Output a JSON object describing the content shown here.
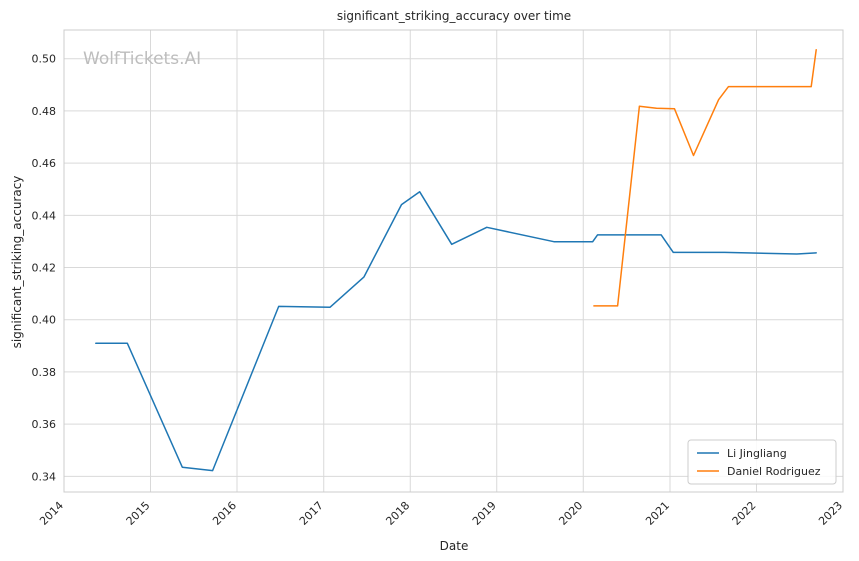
{
  "chart_data": {
    "type": "line",
    "title": "significant_striking_accuracy over time",
    "xlabel": "Date",
    "ylabel": "significant_striking_accuracy",
    "watermark": "WolfTickets.AI",
    "xlim": [
      "2014-01-01",
      "2023-01-01"
    ],
    "ylim": [
      0.334,
      0.511
    ],
    "x_ticks": [
      "2014",
      "2015",
      "2016",
      "2017",
      "2018",
      "2019",
      "2020",
      "2021",
      "2022",
      "2023"
    ],
    "y_ticks": [
      "0.34",
      "0.36",
      "0.38",
      "0.40",
      "0.42",
      "0.44",
      "0.46",
      "0.48",
      "0.50"
    ],
    "grid": true,
    "legend_position": "bottom-right",
    "series": [
      {
        "name": "Li Jingliang",
        "color": "#1f77b4",
        "x": [
          "2014-05-15",
          "2014-09-25",
          "2015-05-15",
          "2015-09-20",
          "2016-06-25",
          "2017-01-28",
          "2017-06-20",
          "2017-11-25",
          "2018-02-10",
          "2018-06-25",
          "2018-11-20",
          "2019-08-30",
          "2020-02-10",
          "2020-03-01",
          "2020-11-25",
          "2021-01-15",
          "2021-08-20",
          "2022-06-20",
          "2022-09-10"
        ],
        "values": [
          0.391,
          0.391,
          0.3435,
          0.3422,
          0.4051,
          0.4048,
          0.4164,
          0.4441,
          0.449,
          0.4289,
          0.4354,
          0.4299,
          0.4299,
          0.4325,
          0.4325,
          0.4258,
          0.4258,
          0.4252,
          0.4256
        ]
      },
      {
        "name": "Daniel Rodriguez",
        "color": "#ff7f0e",
        "x": [
          "2020-02-15",
          "2020-05-25",
          "2020-08-25",
          "2020-11-05",
          "2021-01-20",
          "2021-04-10",
          "2021-07-25",
          "2021-09-05",
          "2022-08-20",
          "2022-09-10"
        ],
        "values": [
          0.4053,
          0.4053,
          0.4818,
          0.481,
          0.4808,
          0.4629,
          0.4843,
          0.4893,
          0.4893,
          0.5034
        ]
      }
    ]
  }
}
